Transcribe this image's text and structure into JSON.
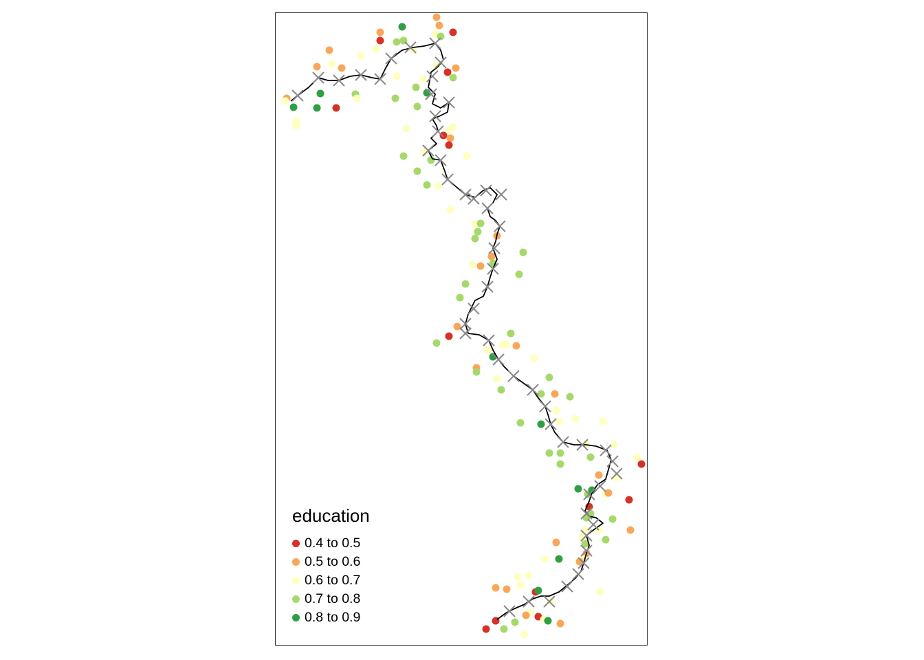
{
  "legend": {
    "title": "education",
    "items": [
      {
        "label": "0.4 to 0.5",
        "color": "#d73027"
      },
      {
        "label": "0.5 to 0.6",
        "color": "#f8a75a"
      },
      {
        "label": "0.6 to 0.7",
        "color": "#ffffbf"
      },
      {
        "label": "0.7 to 0.8",
        "color": "#a6d96a"
      },
      {
        "label": "0.8 to 0.9",
        "color": "#2f9e44"
      }
    ]
  },
  "styles": {
    "route_color": "#000000",
    "cross_color": "#888888"
  }
}
